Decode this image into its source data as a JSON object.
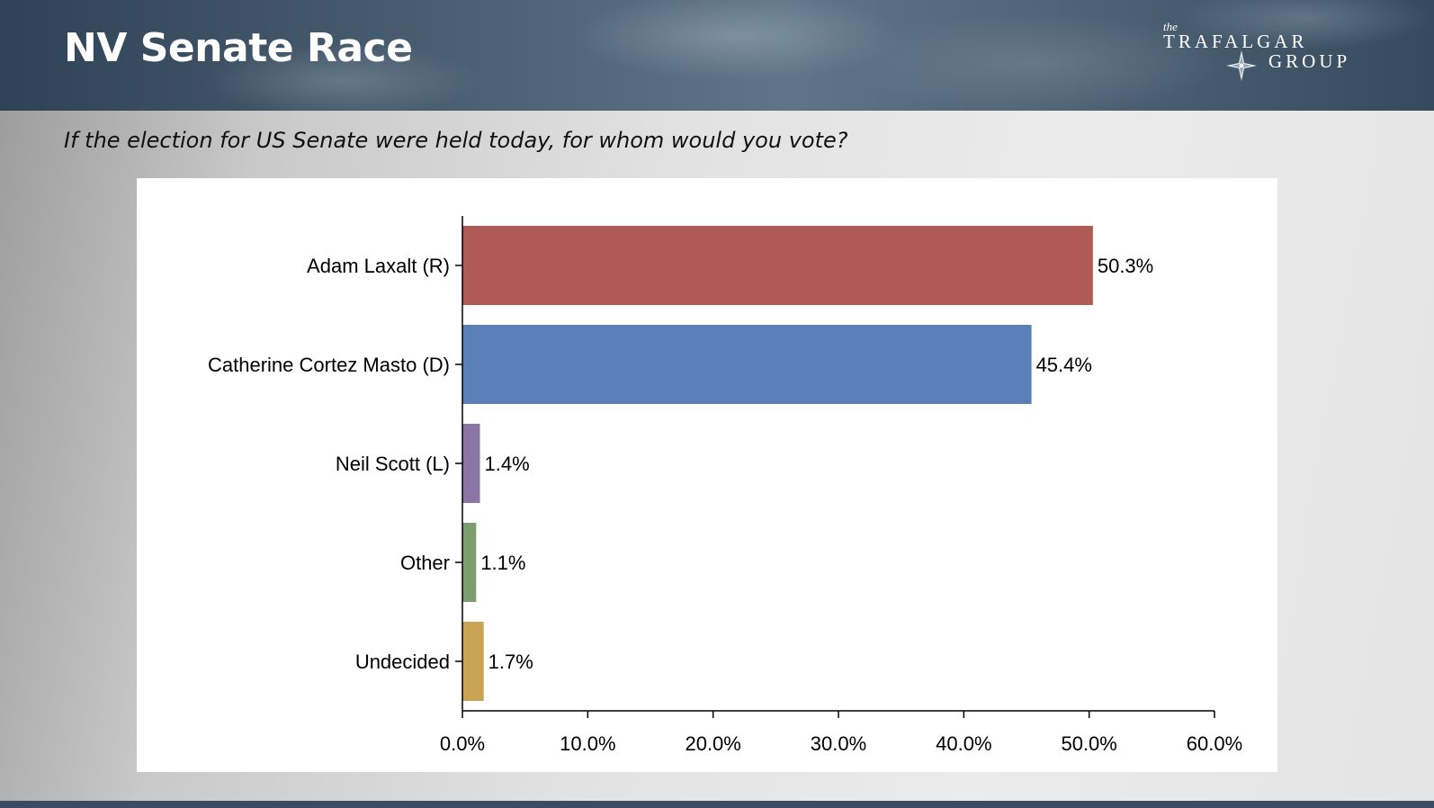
{
  "header": {
    "title": "NV Senate Race",
    "logo": {
      "small": "the",
      "line1": "TRAFALGAR",
      "line2": "GROUP"
    }
  },
  "question": "If the election for US Senate were held today, for whom would you vote?",
  "chart_data": {
    "type": "bar",
    "orientation": "horizontal",
    "categories": [
      "Adam Laxalt (R)",
      "Catherine Cortez Masto (D)",
      "Neil Scott (L)",
      "Other",
      "Undecided"
    ],
    "values": [
      50.3,
      45.4,
      1.4,
      1.1,
      1.7
    ],
    "value_labels": [
      "50.3%",
      "45.4%",
      "1.4%",
      "1.1%",
      "1.7%"
    ],
    "colors": [
      "#b05a55",
      "#5b80b8",
      "#8a75a5",
      "#7c9e6e",
      "#c9a455"
    ],
    "xlim": [
      0,
      60
    ],
    "xticks": [
      0,
      10,
      20,
      30,
      40,
      50,
      60
    ],
    "xtick_labels": [
      "0.0%",
      "10.0%",
      "20.0%",
      "30.0%",
      "40.0%",
      "50.0%",
      "60.0%"
    ],
    "grid": false,
    "legend": "none"
  }
}
